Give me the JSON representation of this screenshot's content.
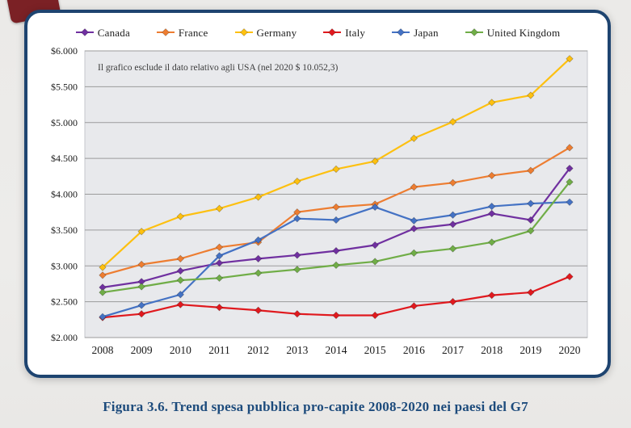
{
  "figure": {
    "caption": "Figura 3.6. Trend spesa pubblica pro-capite 2008-2020 nei paesi del G7"
  },
  "chart_data": {
    "type": "line",
    "annotation": "Il grafico esclude il dato relativo agli USA (nel 2020 $ 10.052,3)",
    "x": [
      2008,
      2009,
      2010,
      2011,
      2012,
      2013,
      2014,
      2015,
      2016,
      2017,
      2018,
      2019,
      2020
    ],
    "ylim": [
      2000,
      6000
    ],
    "y_ticks": [
      "$6.000",
      "$5.500",
      "$5.000",
      "$4.500",
      "$4.000",
      "$3.500",
      "$3.000",
      "$2.500",
      "$2.000"
    ],
    "grid": true,
    "legend_position": "top",
    "marker": "diamond",
    "plot_bg": "#e8e9ec",
    "grid_color": "#9b9b9b",
    "series": [
      {
        "name": "Canada",
        "color": "#7030a0",
        "values": [
          2700,
          2780,
          2930,
          3040,
          3100,
          3150,
          3210,
          3290,
          3520,
          3580,
          3730,
          3640,
          4360
        ]
      },
      {
        "name": "France",
        "color": "#ed7d31",
        "values": [
          2870,
          3020,
          3100,
          3260,
          3330,
          3750,
          3820,
          3860,
          4100,
          4160,
          4260,
          4330,
          4650
        ]
      },
      {
        "name": "Germany",
        "color": "#fdc010",
        "values": [
          2980,
          3480,
          3690,
          3800,
          3960,
          4180,
          4350,
          4460,
          4780,
          5010,
          5280,
          5380,
          5890
        ]
      },
      {
        "name": "Italy",
        "color": "#e0191e",
        "values": [
          2280,
          2330,
          2460,
          2420,
          2380,
          2330,
          2310,
          2310,
          2440,
          2500,
          2590,
          2630,
          2850
        ]
      },
      {
        "name": "Japan",
        "color": "#4472c4",
        "values": [
          2290,
          2450,
          2600,
          3140,
          3360,
          3660,
          3640,
          3820,
          3630,
          3710,
          3830,
          3870,
          3890
        ]
      },
      {
        "name": "United Kingdom",
        "color": "#70ad47",
        "values": [
          2630,
          2710,
          2800,
          2830,
          2900,
          2950,
          3010,
          3060,
          3180,
          3240,
          3330,
          3490,
          4170
        ]
      }
    ]
  }
}
